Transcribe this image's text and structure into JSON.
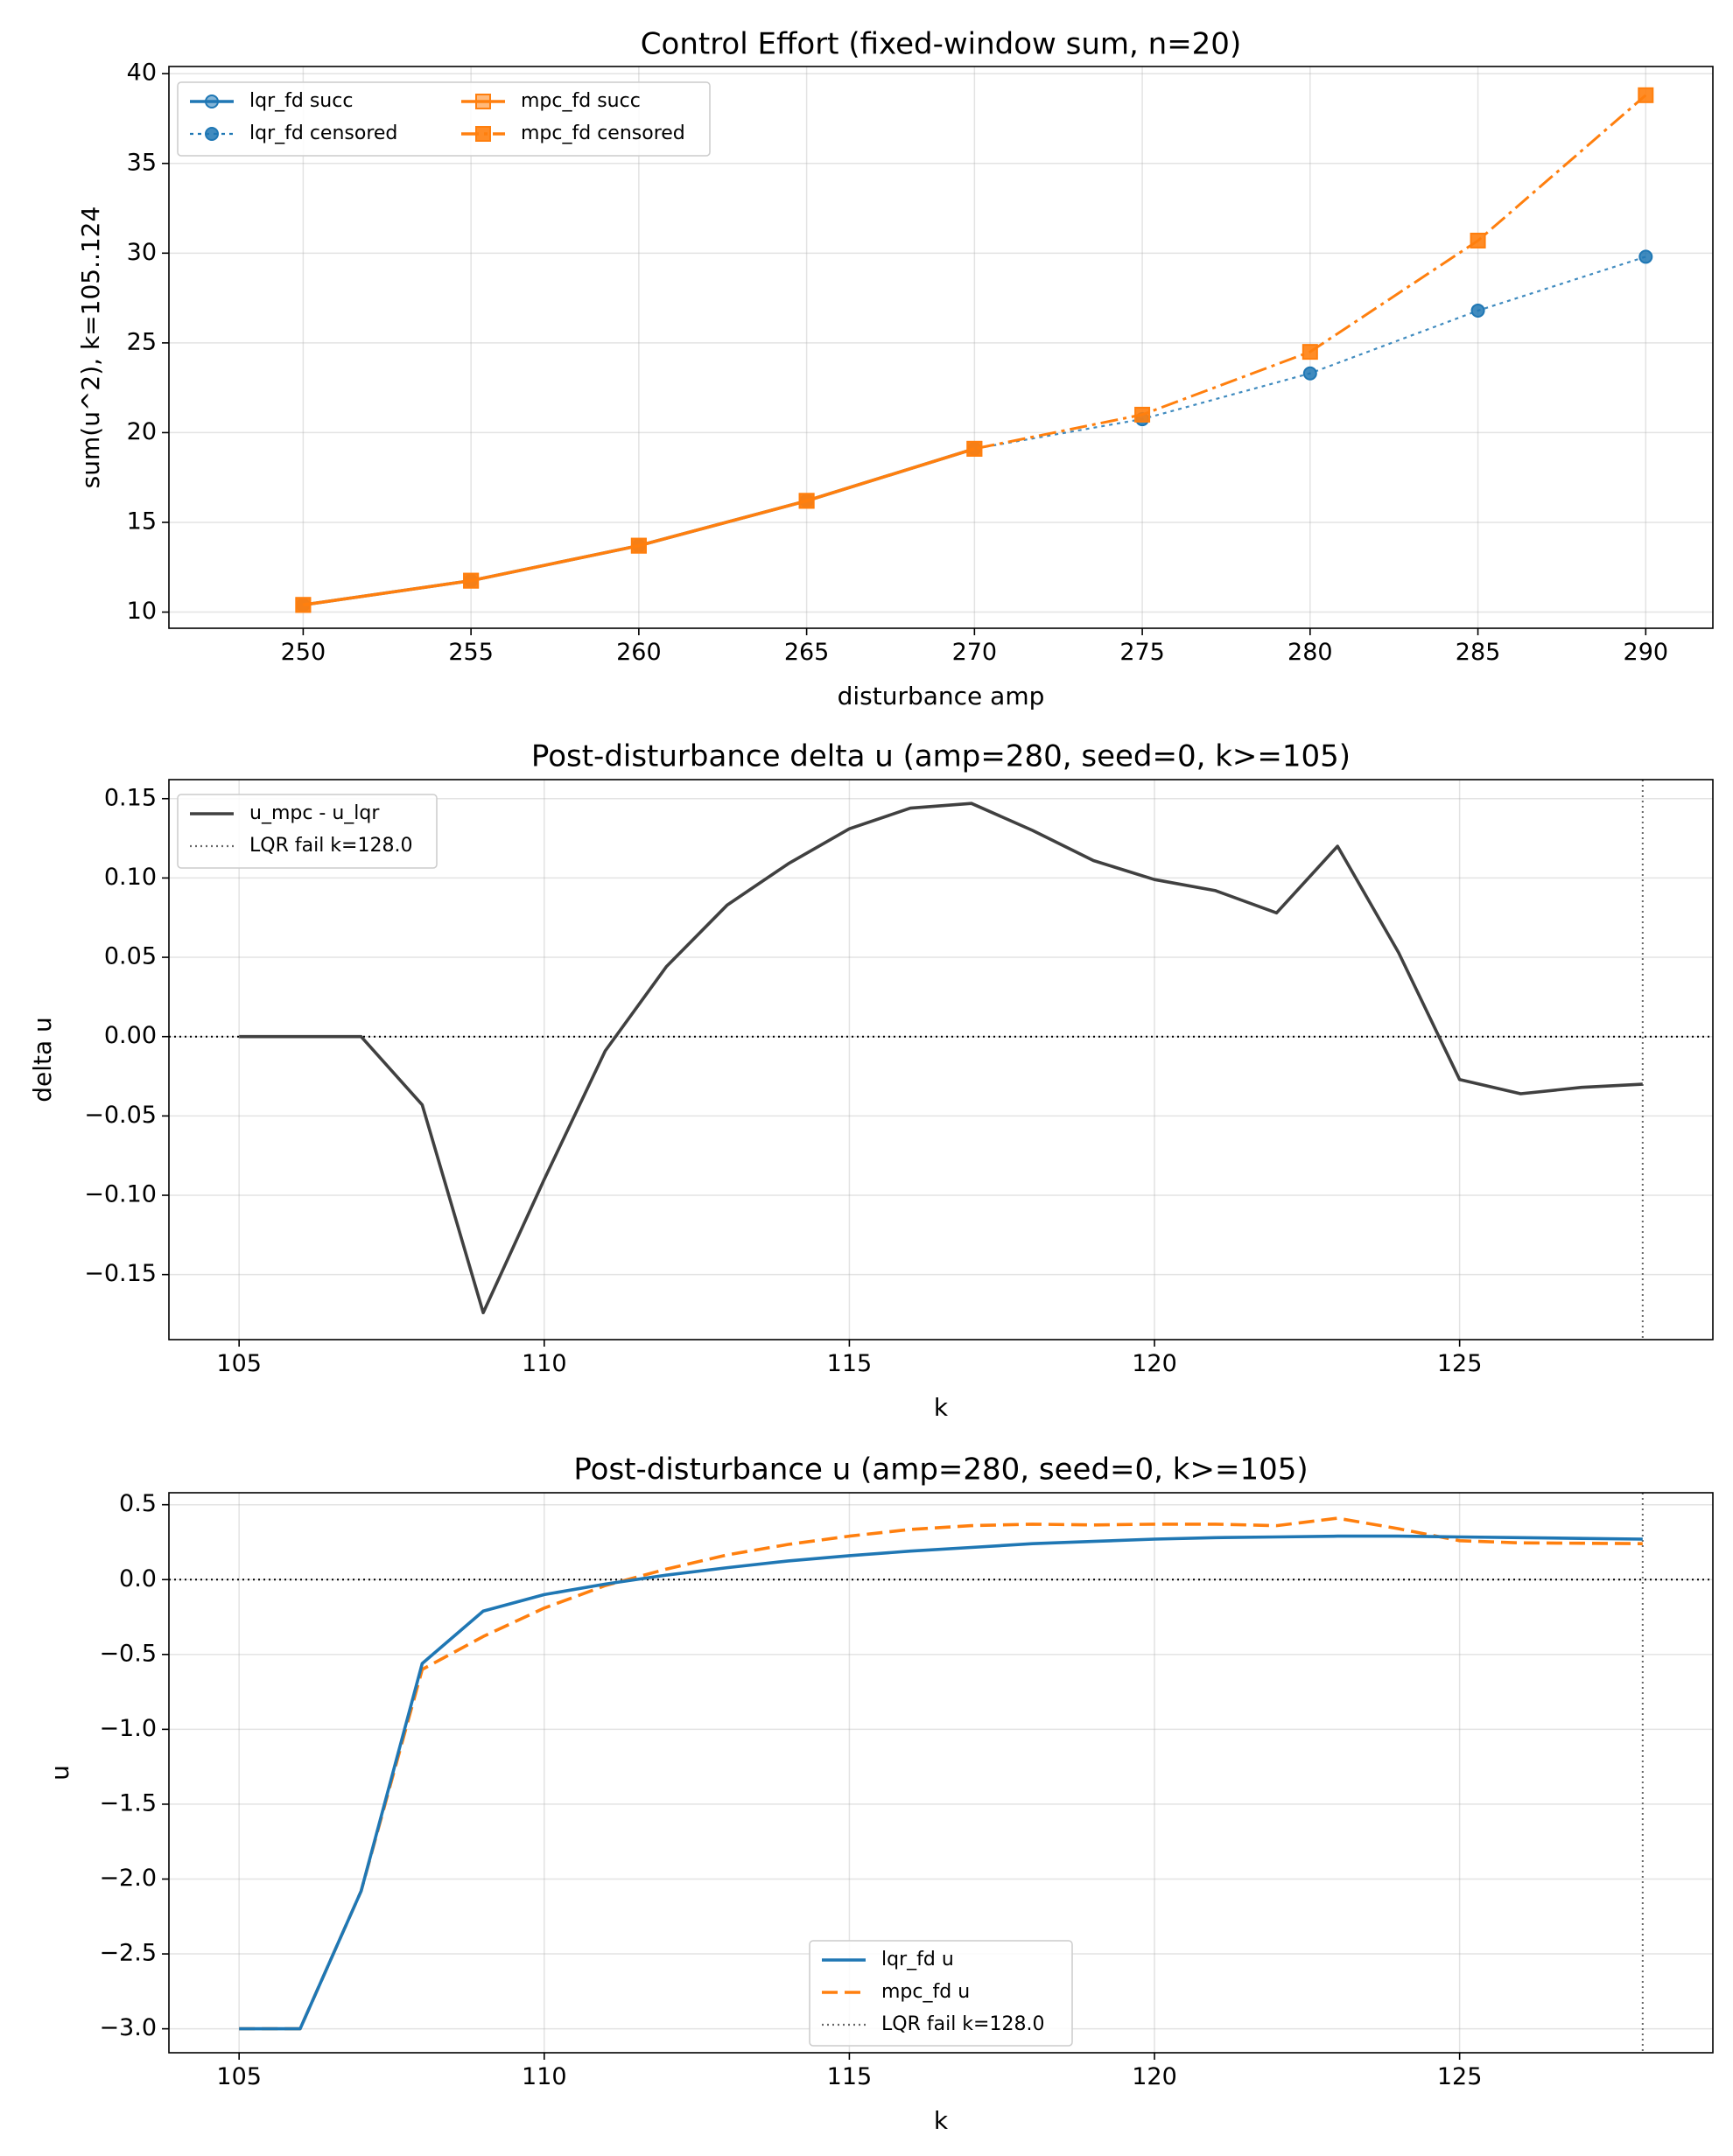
{
  "chart_data": [
    {
      "type": "line",
      "title": "Control Effort (fixed-window sum, n=20)",
      "xlabel": "disturbance amp",
      "ylabel": "sum(u^2), k=105..124",
      "xlim": [
        246,
        292
      ],
      "ylim": [
        9.1,
        40.4
      ],
      "xticks": [
        250,
        255,
        260,
        265,
        270,
        275,
        280,
        285,
        290
      ],
      "yticks": [
        10,
        15,
        20,
        25,
        30,
        35,
        40
      ],
      "grid": true,
      "legend_position": "upper-left",
      "x": [
        250,
        255,
        260,
        265,
        270,
        275,
        280,
        285,
        290
      ],
      "series": [
        {
          "name": "lqr_fd succ",
          "color": "#1f77b4",
          "style": "solid",
          "marker": "circle-open",
          "x": [
            250,
            255,
            260,
            265,
            270
          ],
          "values": [
            10.4,
            11.75,
            13.7,
            16.2,
            19.1
          ]
        },
        {
          "name": "lqr_fd censored",
          "color": "#1f77b4",
          "style": "dotted",
          "marker": "circle",
          "x": [
            250,
            255,
            260,
            265,
            270,
            275,
            280,
            285,
            290
          ],
          "values": [
            10.4,
            11.75,
            13.7,
            16.2,
            19.1,
            20.75,
            23.3,
            26.8,
            29.8
          ]
        },
        {
          "name": "mpc_fd succ",
          "color": "#ff7f0e",
          "style": "solid",
          "marker": "square-open",
          "x": [
            250,
            255,
            260,
            265,
            270
          ],
          "values": [
            10.4,
            11.75,
            13.7,
            16.2,
            19.1
          ]
        },
        {
          "name": "mpc_fd censored",
          "color": "#ff7f0e",
          "style": "dashdot",
          "marker": "square",
          "x": [
            250,
            255,
            260,
            265,
            270,
            275,
            280,
            285,
            290
          ],
          "values": [
            10.4,
            11.75,
            13.7,
            16.2,
            19.1,
            21.0,
            24.5,
            30.7,
            38.8
          ]
        }
      ],
      "legend": [
        "lqr_fd succ",
        "lqr_fd censored",
        "mpc_fd succ",
        "mpc_fd censored"
      ]
    },
    {
      "type": "line",
      "title": "Post-disturbance delta u (amp=280, seed=0, k>=105)",
      "xlabel": "k",
      "ylabel": "delta u",
      "xlim": [
        103.85,
        129.15
      ],
      "ylim": [
        -0.191,
        0.162
      ],
      "xticks": [
        105,
        110,
        115,
        120,
        125
      ],
      "yticks": [
        0.15,
        0.1,
        0.05,
        0.0,
        -0.05,
        -0.1,
        -0.15
      ],
      "ytick_labels": [
        "0.15",
        "0.10",
        "0.05",
        "0.00",
        "−0.05",
        "−0.10",
        "−0.15"
      ],
      "grid": true,
      "legend_position": "upper-left",
      "zero_line": true,
      "fail_line_k": 128,
      "series": [
        {
          "name": "u_mpc - u_lqr",
          "color": "#404040",
          "style": "solid",
          "x": [
            105,
            106,
            107,
            108,
            109,
            110,
            111,
            112,
            113,
            114,
            115,
            116,
            117,
            118,
            119,
            120,
            121,
            122,
            123,
            124,
            125,
            126,
            127,
            128
          ],
          "values": [
            0.0,
            0.0,
            0.0,
            -0.043,
            -0.174,
            -0.09,
            -0.009,
            0.044,
            0.083,
            0.109,
            0.131,
            0.144,
            0.147,
            0.13,
            0.111,
            0.099,
            0.092,
            0.078,
            0.12,
            0.053,
            -0.027,
            -0.036,
            -0.032,
            -0.03
          ]
        }
      ],
      "legend": [
        "u_mpc - u_lqr",
        "LQR fail k=128.0"
      ]
    },
    {
      "type": "line",
      "title": "Post-disturbance u (amp=280, seed=0, k>=105)",
      "xlabel": "k",
      "ylabel": "u",
      "xlim": [
        103.85,
        129.15
      ],
      "ylim": [
        -3.16,
        0.58
      ],
      "xticks": [
        105,
        110,
        115,
        120,
        125
      ],
      "yticks": [
        0.5,
        0.0,
        -0.5,
        -1.0,
        -1.5,
        -2.0,
        -2.5,
        -3.0
      ],
      "ytick_labels": [
        "0.5",
        "0.0",
        "−0.5",
        "−1.0",
        "−1.5",
        "−2.0",
        "−2.5",
        "−3.0"
      ],
      "grid": true,
      "legend_position": "lower-center",
      "zero_line": true,
      "fail_line_k": 128,
      "series": [
        {
          "name": "lqr_fd u",
          "color": "#1f77b4",
          "style": "solid",
          "x": [
            105,
            106,
            107,
            108,
            109,
            110,
            111,
            112,
            113,
            114,
            115,
            116,
            117,
            118,
            119,
            120,
            121,
            122,
            123,
            124,
            125,
            126,
            127,
            128
          ],
          "values": [
            -3.0,
            -3.0,
            -2.08,
            -0.56,
            -0.21,
            -0.1,
            -0.03,
            0.03,
            0.08,
            0.125,
            0.16,
            0.19,
            0.215,
            0.24,
            0.255,
            0.27,
            0.28,
            0.285,
            0.29,
            0.29,
            0.285,
            0.28,
            0.275,
            0.27
          ]
        },
        {
          "name": "mpc_fd u",
          "color": "#ff7f0e",
          "style": "dashed",
          "x": [
            105,
            106,
            107,
            108,
            109,
            110,
            111,
            112,
            113,
            114,
            115,
            116,
            117,
            118,
            119,
            120,
            121,
            122,
            123,
            124,
            125,
            126,
            127,
            128
          ],
          "values": [
            -3.0,
            -3.0,
            -2.08,
            -0.6,
            -0.38,
            -0.19,
            -0.04,
            0.07,
            0.165,
            0.235,
            0.29,
            0.335,
            0.36,
            0.37,
            0.365,
            0.37,
            0.37,
            0.36,
            0.41,
            0.34,
            0.26,
            0.245,
            0.243,
            0.24
          ]
        }
      ],
      "legend": [
        "lqr_fd u",
        "mpc_fd u",
        "LQR fail k=128.0"
      ]
    }
  ]
}
